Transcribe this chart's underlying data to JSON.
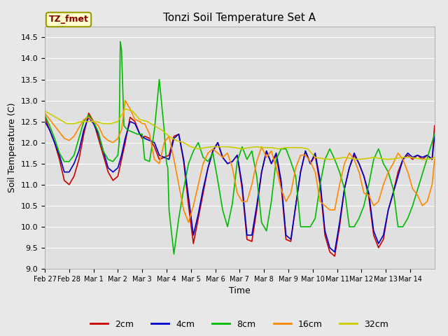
{
  "title": "Tonzi Soil Temperature Set A",
  "xlabel": "Time",
  "ylabel": "Soil Temperature (C)",
  "ylim": [
    9.0,
    14.75
  ],
  "xlim": [
    0,
    16
  ],
  "xtick_labels": [
    "Feb 27",
    "Feb 28",
    "Mar 1",
    "Mar 2",
    "Mar 3",
    "Mar 4",
    "Mar 5",
    "Mar 6",
    "Mar 7",
    "Mar 8",
    "Mar 9",
    "Mar 10",
    "Mar 11",
    "Mar 12",
    "Mar 13",
    "Mar 14"
  ],
  "ytick_values": [
    9.0,
    9.5,
    10.0,
    10.5,
    11.0,
    11.5,
    12.0,
    12.5,
    13.0,
    13.5,
    14.0,
    14.5
  ],
  "legend_label": "TZ_fmet",
  "series_labels": [
    "2cm",
    "4cm",
    "8cm",
    "16cm",
    "32cm"
  ],
  "series_colors": [
    "#cc0000",
    "#0000cc",
    "#00bb00",
    "#ff8800",
    "#cccc00"
  ],
  "line_width": 1.2,
  "fig_bg_color": "#e8e8e8",
  "plot_bg_color": "#e0e0e0",
  "grid_color": "#ffffff",
  "x_2cm": [
    0,
    0.2,
    0.4,
    0.6,
    0.8,
    1.0,
    1.2,
    1.4,
    1.6,
    1.8,
    2.0,
    2.2,
    2.4,
    2.6,
    2.8,
    3.0,
    3.15,
    3.3,
    3.5,
    3.7,
    3.9,
    4.0,
    4.1,
    4.3,
    4.5,
    4.7,
    4.9,
    5.1,
    5.3,
    5.5,
    5.7,
    5.9,
    6.1,
    6.3,
    6.5,
    6.7,
    6.9,
    7.1,
    7.3,
    7.5,
    7.7,
    7.9,
    8.1,
    8.3,
    8.5,
    8.7,
    8.9,
    9.1,
    9.3,
    9.5,
    9.7,
    9.9,
    10.1,
    10.3,
    10.5,
    10.7,
    10.9,
    11.1,
    11.3,
    11.5,
    11.7,
    11.9,
    12.1,
    12.3,
    12.5,
    12.7,
    12.9,
    13.1,
    13.3,
    13.5,
    13.7,
    13.9,
    14.1,
    14.3,
    14.5,
    14.7,
    14.9,
    15.1,
    15.3,
    15.5,
    15.7,
    15.9,
    16.0
  ],
  "y_2cm": [
    12.6,
    12.3,
    12.0,
    11.6,
    11.1,
    11.0,
    11.2,
    11.6,
    12.2,
    12.7,
    12.5,
    12.1,
    11.7,
    11.3,
    11.1,
    11.2,
    11.6,
    12.0,
    12.6,
    12.5,
    12.2,
    12.1,
    12.15,
    12.1,
    11.9,
    11.6,
    11.65,
    11.7,
    12.15,
    12.2,
    11.55,
    10.5,
    9.6,
    10.2,
    10.8,
    11.4,
    11.8,
    12.0,
    11.65,
    11.5,
    11.55,
    11.7,
    10.9,
    9.7,
    9.65,
    10.4,
    11.3,
    11.8,
    11.5,
    11.7,
    11.0,
    9.7,
    9.65,
    10.5,
    11.3,
    11.8,
    11.5,
    11.7,
    11.0,
    9.8,
    9.4,
    9.3,
    10.0,
    10.9,
    11.4,
    11.7,
    11.5,
    11.2,
    10.7,
    9.8,
    9.5,
    9.7,
    10.4,
    10.8,
    11.3,
    11.6,
    11.7,
    11.6,
    11.7,
    11.6,
    11.7,
    11.6,
    12.4
  ],
  "x_4cm": [
    0,
    0.2,
    0.4,
    0.6,
    0.8,
    1.0,
    1.2,
    1.4,
    1.6,
    1.8,
    2.0,
    2.2,
    2.4,
    2.6,
    2.8,
    3.0,
    3.15,
    3.3,
    3.5,
    3.7,
    3.9,
    4.0,
    4.1,
    4.3,
    4.5,
    4.7,
    4.9,
    5.1,
    5.3,
    5.5,
    5.7,
    5.9,
    6.1,
    6.3,
    6.5,
    6.7,
    6.9,
    7.1,
    7.3,
    7.5,
    7.7,
    7.9,
    8.1,
    8.3,
    8.5,
    8.7,
    8.9,
    9.1,
    9.3,
    9.5,
    9.7,
    9.9,
    10.1,
    10.3,
    10.5,
    10.7,
    10.9,
    11.1,
    11.3,
    11.5,
    11.7,
    11.9,
    12.1,
    12.3,
    12.5,
    12.7,
    12.9,
    13.1,
    13.3,
    13.5,
    13.7,
    13.9,
    14.1,
    14.3,
    14.5,
    14.7,
    14.9,
    15.1,
    15.3,
    15.5,
    15.7,
    15.9,
    16.0
  ],
  "y_4cm": [
    12.5,
    12.3,
    12.0,
    11.7,
    11.3,
    11.3,
    11.5,
    11.8,
    12.3,
    12.6,
    12.45,
    12.2,
    11.8,
    11.4,
    11.3,
    11.4,
    11.7,
    12.1,
    12.5,
    12.45,
    12.2,
    12.15,
    12.1,
    12.05,
    12.0,
    11.7,
    11.65,
    11.6,
    12.1,
    12.2,
    11.6,
    10.7,
    9.8,
    10.3,
    10.9,
    11.4,
    11.8,
    12.0,
    11.65,
    11.5,
    11.55,
    11.7,
    11.0,
    9.8,
    9.8,
    10.5,
    11.3,
    11.8,
    11.5,
    11.75,
    11.1,
    9.8,
    9.7,
    10.5,
    11.3,
    11.8,
    11.5,
    11.75,
    11.1,
    9.9,
    9.5,
    9.4,
    10.1,
    10.9,
    11.4,
    11.75,
    11.5,
    11.2,
    10.8,
    9.9,
    9.6,
    9.8,
    10.4,
    10.8,
    11.2,
    11.6,
    11.75,
    11.65,
    11.7,
    11.65,
    11.7,
    11.6,
    12.15
  ],
  "x_8cm": [
    0,
    0.2,
    0.4,
    0.6,
    0.8,
    1.0,
    1.2,
    1.4,
    1.6,
    1.8,
    2.0,
    2.2,
    2.4,
    2.6,
    2.8,
    3.0,
    3.05,
    3.1,
    3.15,
    3.25,
    3.4,
    3.6,
    3.8,
    4.0,
    4.1,
    4.3,
    4.5,
    4.7,
    4.9,
    5.0,
    5.05,
    5.1,
    5.3,
    5.5,
    5.7,
    5.9,
    6.1,
    6.3,
    6.5,
    6.7,
    6.9,
    7.1,
    7.3,
    7.5,
    7.7,
    7.9,
    8.1,
    8.3,
    8.5,
    8.7,
    8.9,
    9.1,
    9.3,
    9.5,
    9.7,
    9.9,
    10.1,
    10.3,
    10.5,
    10.7,
    10.9,
    11.1,
    11.3,
    11.5,
    11.7,
    11.9,
    12.1,
    12.3,
    12.5,
    12.7,
    12.9,
    13.1,
    13.3,
    13.5,
    13.7,
    13.9,
    14.1,
    14.3,
    14.5,
    14.7,
    14.9,
    15.1,
    16.0
  ],
  "y_8cm": [
    12.65,
    12.4,
    12.1,
    11.75,
    11.55,
    11.55,
    11.7,
    12.1,
    12.5,
    12.65,
    12.5,
    12.25,
    11.8,
    11.6,
    11.55,
    11.7,
    12.0,
    14.4,
    14.2,
    12.4,
    12.3,
    12.25,
    12.2,
    12.2,
    11.6,
    11.55,
    12.3,
    13.5,
    12.3,
    11.5,
    11.4,
    10.4,
    9.35,
    10.2,
    10.9,
    11.5,
    11.8,
    12.0,
    11.65,
    11.55,
    11.75,
    11.1,
    10.4,
    10.0,
    10.55,
    11.55,
    11.9,
    11.6,
    11.8,
    11.2,
    10.1,
    9.9,
    10.6,
    11.6,
    11.85,
    11.85,
    11.55,
    11.2,
    10.0,
    10.0,
    10.0,
    10.2,
    11.0,
    11.6,
    11.85,
    11.6,
    11.3,
    10.9,
    10.0,
    10.0,
    10.2,
    10.5,
    11.0,
    11.6,
    11.85,
    11.5,
    11.3,
    10.9,
    10.0,
    10.0,
    10.2,
    10.5,
    12.2
  ],
  "x_16cm": [
    0,
    0.2,
    0.4,
    0.6,
    0.8,
    1.0,
    1.2,
    1.4,
    1.6,
    1.8,
    2.0,
    2.2,
    2.4,
    2.6,
    2.8,
    3.0,
    3.15,
    3.3,
    3.5,
    3.7,
    3.9,
    4.0,
    4.1,
    4.3,
    4.5,
    4.7,
    4.9,
    5.1,
    5.3,
    5.5,
    5.7,
    5.9,
    6.1,
    6.3,
    6.5,
    6.7,
    6.9,
    7.1,
    7.3,
    7.5,
    7.7,
    7.9,
    8.1,
    8.3,
    8.5,
    8.7,
    8.9,
    9.1,
    9.3,
    9.5,
    9.7,
    9.9,
    10.1,
    10.3,
    10.5,
    10.7,
    10.9,
    11.1,
    11.3,
    11.5,
    11.7,
    11.9,
    12.1,
    12.3,
    12.5,
    12.7,
    12.9,
    13.1,
    13.3,
    13.5,
    13.7,
    13.9,
    14.1,
    14.3,
    14.5,
    14.7,
    14.9,
    15.1,
    15.3,
    15.5,
    15.7,
    15.9,
    16.0
  ],
  "y_16cm": [
    12.7,
    12.55,
    12.4,
    12.25,
    12.1,
    12.05,
    12.15,
    12.35,
    12.55,
    12.6,
    12.5,
    12.4,
    12.15,
    12.05,
    12.0,
    12.1,
    12.3,
    13.0,
    12.8,
    12.55,
    12.5,
    12.45,
    12.45,
    12.2,
    11.6,
    11.5,
    12.0,
    12.15,
    11.6,
    11.0,
    10.4,
    10.1,
    10.5,
    11.0,
    11.5,
    11.75,
    11.85,
    11.75,
    11.65,
    11.75,
    11.4,
    10.8,
    10.6,
    10.6,
    11.0,
    11.55,
    11.9,
    11.65,
    11.8,
    11.4,
    10.9,
    10.6,
    10.8,
    11.4,
    11.7,
    11.7,
    11.55,
    11.3,
    10.6,
    10.5,
    10.4,
    10.4,
    11.0,
    11.5,
    11.75,
    11.6,
    11.3,
    10.8,
    10.75,
    10.5,
    10.6,
    11.0,
    11.3,
    11.5,
    11.75,
    11.6,
    11.3,
    10.9,
    10.75,
    10.5,
    10.6,
    11.0,
    11.6
  ],
  "x_32cm": [
    0,
    0.3,
    0.6,
    0.9,
    1.2,
    1.5,
    1.8,
    2.1,
    2.4,
    2.7,
    3.0,
    3.3,
    3.6,
    3.9,
    4.2,
    4.5,
    4.8,
    5.1,
    5.4,
    5.7,
    6.0,
    6.3,
    6.6,
    6.9,
    7.2,
    7.5,
    7.8,
    8.1,
    8.4,
    8.7,
    9.0,
    9.3,
    9.6,
    9.9,
    10.2,
    10.5,
    10.8,
    11.1,
    11.4,
    11.7,
    12.0,
    12.3,
    12.6,
    12.9,
    13.2,
    13.5,
    13.8,
    14.1,
    14.4,
    14.7,
    15.0,
    15.3,
    15.6,
    15.9,
    16.0
  ],
  "y_32cm": [
    12.75,
    12.65,
    12.55,
    12.45,
    12.45,
    12.5,
    12.5,
    12.5,
    12.45,
    12.45,
    12.5,
    12.8,
    12.75,
    12.55,
    12.5,
    12.4,
    12.3,
    12.15,
    12.05,
    12.0,
    11.9,
    11.85,
    11.88,
    11.9,
    11.9,
    11.9,
    11.88,
    11.85,
    11.88,
    11.9,
    11.88,
    11.88,
    11.85,
    11.88,
    11.88,
    11.88,
    11.85,
    11.65,
    11.62,
    11.6,
    11.62,
    11.65,
    11.62,
    11.6,
    11.62,
    11.65,
    11.62,
    11.6,
    11.62,
    11.65,
    11.65,
    11.62,
    11.6,
    11.62,
    11.65
  ]
}
